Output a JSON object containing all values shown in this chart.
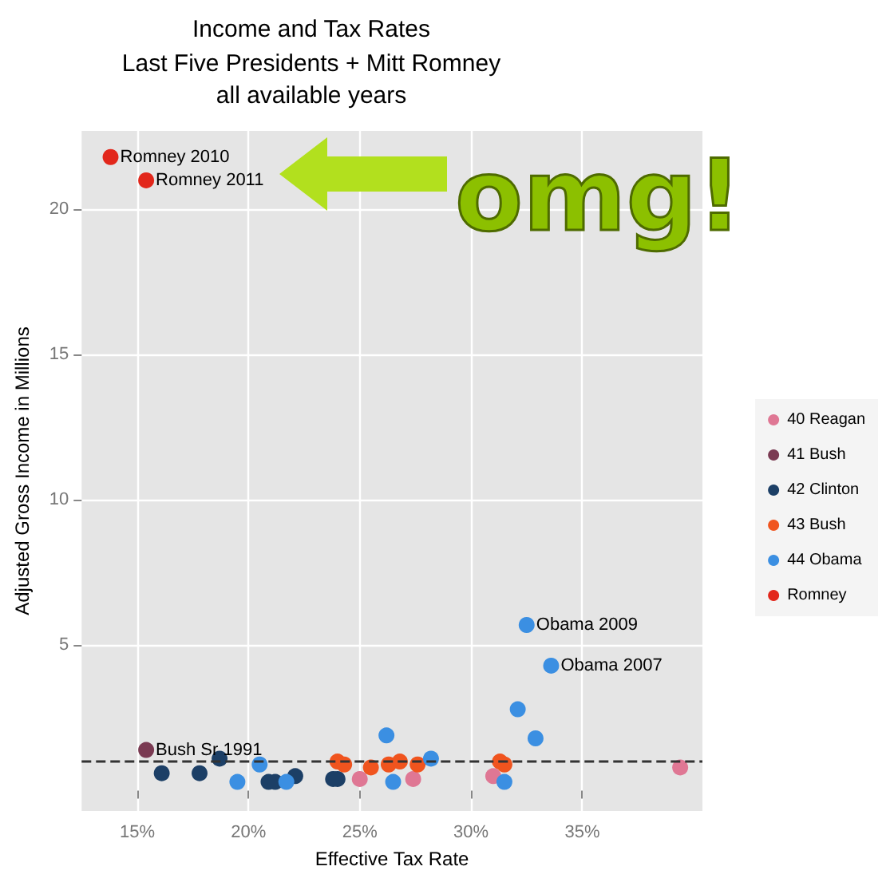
{
  "chart_data": {
    "type": "scatter",
    "title": "Income and Tax Rates",
    "subtitle": "Last Five Presidents + Mitt Romney\nall available years",
    "xlabel": "Effective Tax Rate",
    "ylabel": "Adjusted Gross Income in Millions",
    "xlim": [
      12.5,
      40.4
    ],
    "ylim": [
      -0.7,
      22.7
    ],
    "xticks": [
      {
        "value": 15,
        "label": "15%"
      },
      {
        "value": 20,
        "label": "20%"
      },
      {
        "value": 25,
        "label": "25%"
      },
      {
        "value": 30,
        "label": "30%"
      },
      {
        "value": 35,
        "label": "35%"
      }
    ],
    "yticks": [
      5,
      10,
      15,
      20
    ],
    "grid": true,
    "legend": "right",
    "marker": "circle",
    "series": [
      {
        "name": "40 Reagan",
        "color": "#df7794",
        "x": [
          25.0,
          27.4,
          31.0,
          39.4
        ],
        "values": [
          0.4,
          0.4,
          0.5,
          0.8
        ]
      },
      {
        "name": "41 Bush",
        "color": "#7a3a52",
        "x": [
          15.4
        ],
        "values": [
          1.4
        ]
      },
      {
        "name": "42 Clinton",
        "color": "#1c3f66",
        "x": [
          16.1,
          17.8,
          18.7,
          20.9,
          21.2,
          22.1,
          23.8,
          24.0
        ],
        "values": [
          0.6,
          0.6,
          1.1,
          0.3,
          0.3,
          0.5,
          0.4,
          0.4
        ]
      },
      {
        "name": "43 Bush",
        "color": "#f0541e",
        "x": [
          24.0,
          24.3,
          25.5,
          26.3,
          26.8,
          27.6,
          31.3,
          31.5
        ],
        "values": [
          1.0,
          0.9,
          0.8,
          0.9,
          1.0,
          0.9,
          1.0,
          0.9
        ]
      },
      {
        "name": "44 Obama",
        "color": "#3b8fe2",
        "x": [
          19.5,
          20.5,
          21.7,
          26.2,
          26.5,
          28.2,
          31.5,
          32.1,
          32.9,
          32.5,
          33.6
        ],
        "values": [
          0.3,
          0.9,
          0.3,
          1.9,
          0.3,
          1.1,
          0.3,
          2.8,
          1.8,
          5.7,
          4.3
        ]
      },
      {
        "name": "Romney",
        "color": "#e2271b",
        "x": [
          13.8,
          15.4
        ],
        "values": [
          21.8,
          21.0
        ]
      }
    ],
    "ref_lines": [
      {
        "axis": "y",
        "value": 1,
        "line_style": "dashed",
        "color": "#333333"
      }
    ],
    "annotations": [
      {
        "text": "Romney 2010",
        "x": 13.8,
        "y": 21.8
      },
      {
        "text": "Romney 2011",
        "x": 15.4,
        "y": 21.0
      },
      {
        "text": "Obama 2009",
        "x": 32.5,
        "y": 5.7
      },
      {
        "text": "Obama 2007",
        "x": 33.6,
        "y": 4.3
      },
      {
        "text": "Bush Sr 1991",
        "x": 15.4,
        "y": 1.4
      },
      "omg!"
    ]
  }
}
